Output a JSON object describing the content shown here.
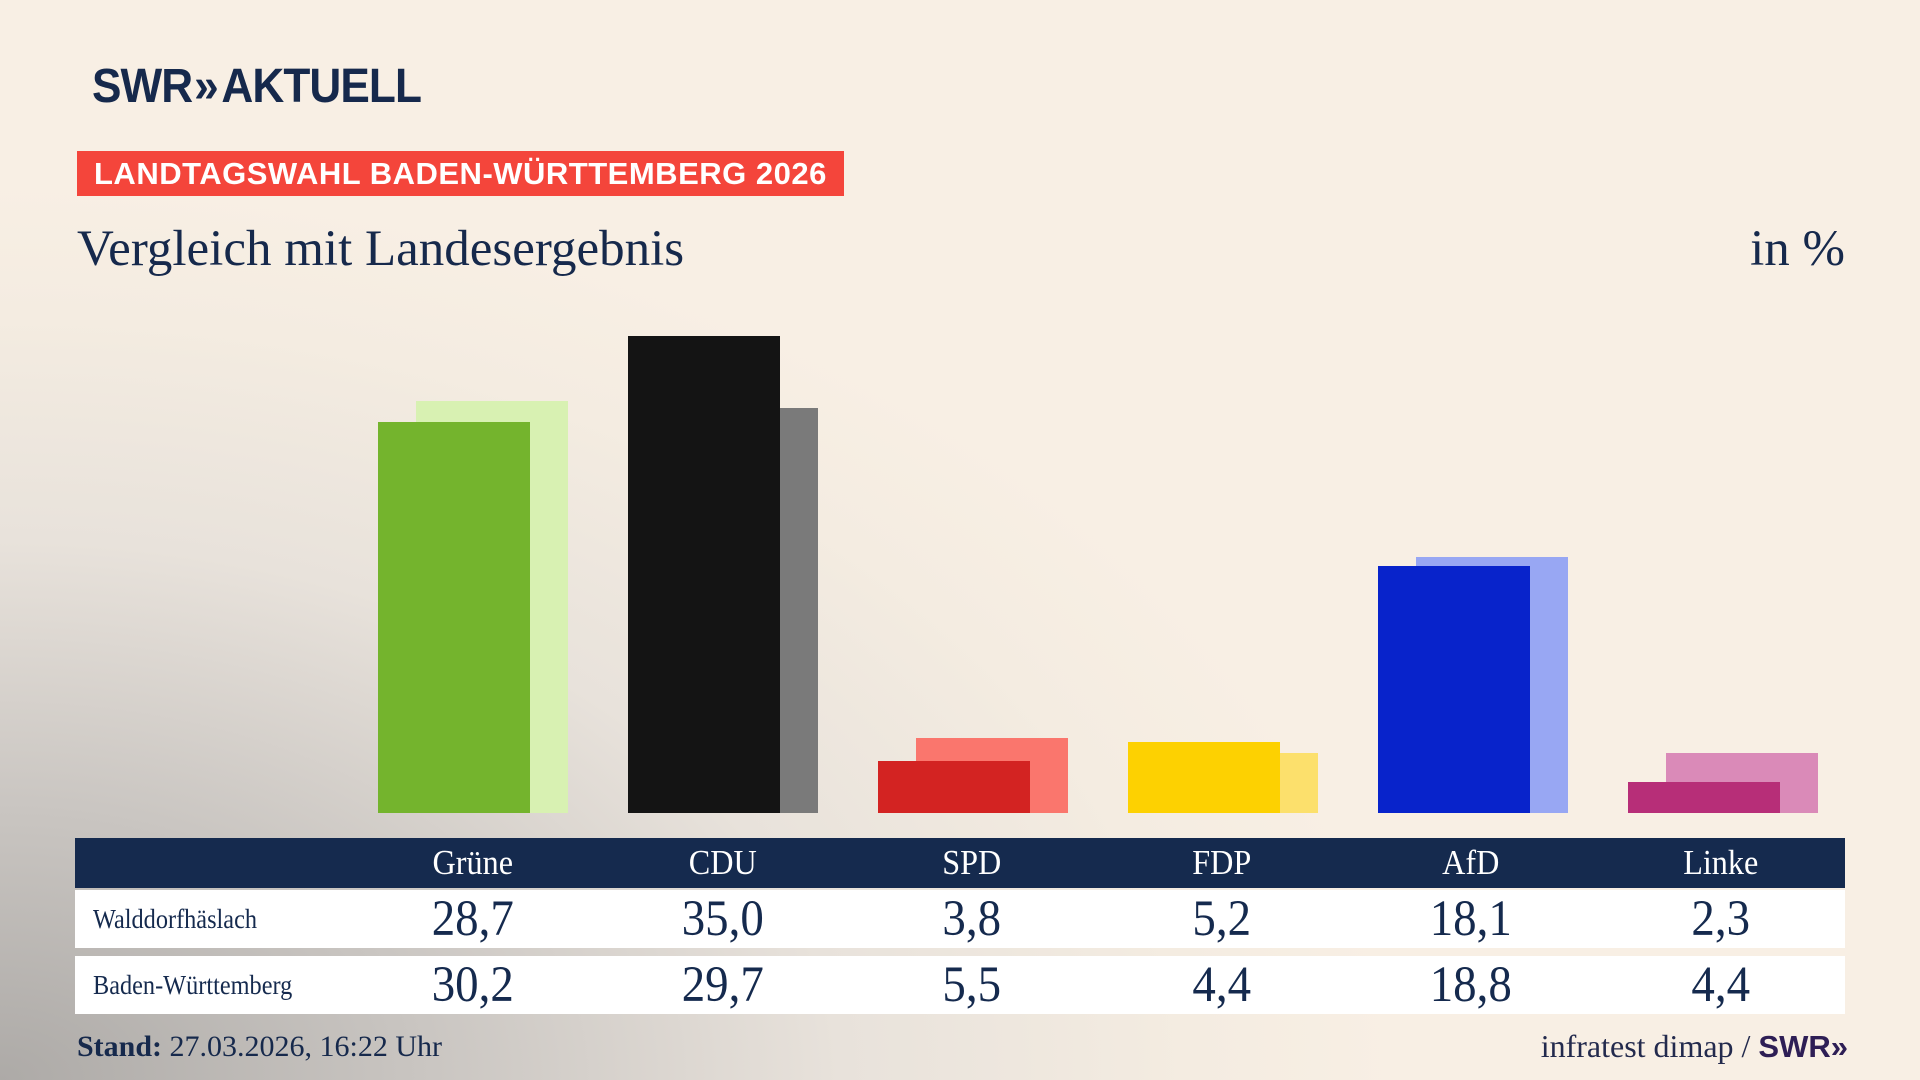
{
  "brand": {
    "swr": "SWR",
    "chevrons": "»",
    "product": "AKTUELL"
  },
  "badge": {
    "label": "LANDTAGSWAHL BADEN-WÜRTTEMBERG 2026",
    "bg": "#f4453b"
  },
  "title": "Vergleich mit Landesergebnis",
  "unit_label": "in %",
  "chart_data": {
    "type": "bar",
    "categories": [
      "Grüne",
      "CDU",
      "SPD",
      "FDP",
      "AfD",
      "Linke"
    ],
    "series": [
      {
        "name": "Walddorfhäslach",
        "values": [
          28.7,
          35.0,
          3.8,
          5.2,
          18.1,
          2.3
        ],
        "colors": [
          "#74b42d",
          "#141414",
          "#d32322",
          "#fdd101",
          "#0823cb",
          "#b72e78"
        ]
      },
      {
        "name": "Baden-Württemberg",
        "values": [
          30.2,
          29.7,
          5.5,
          4.4,
          18.8,
          4.4
        ],
        "colors": [
          "#d8f1b2",
          "#7a7a7a",
          "#fa766d",
          "#fce06c",
          "#98a7f3",
          "#da8ab8"
        ]
      }
    ],
    "ylabel": "in %",
    "ylim": [
      0,
      35
    ],
    "grid": false,
    "legend": "table-below",
    "value_format": "decimal-comma"
  },
  "table": {
    "header": [
      "Grüne",
      "CDU",
      "SPD",
      "FDP",
      "AfD",
      "Linke"
    ],
    "header_bg": "#152a4e",
    "rows": [
      {
        "label": "Walddorfhäslach",
        "values": [
          "28,7",
          "35,0",
          "3,8",
          "5,2",
          "18,1",
          "2,3"
        ]
      },
      {
        "label": "Baden-Württemberg",
        "values": [
          "30,2",
          "29,7",
          "5,5",
          "4,4",
          "18,8",
          "4,4"
        ]
      }
    ]
  },
  "footer": {
    "stand_label": "Stand:",
    "stand_value": " 27.03.2026, 16:22 Uhr",
    "source_text": "infratest dimap / ",
    "source_logo_swr": "SWR",
    "source_logo_chevrons": "»"
  },
  "colors": {
    "navy": "#16294c",
    "badge_red": "#f4453b",
    "background": "#f8efe4",
    "footer_logo": "#2e1e55"
  }
}
